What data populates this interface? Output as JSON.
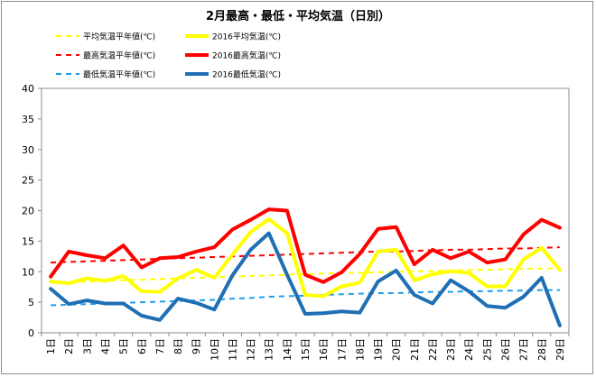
{
  "chart_data": {
    "type": "line",
    "title": "2月最高・最低・平均気温（日別）",
    "xlabel": "",
    "ylabel": "",
    "ylim": [
      0,
      40
    ],
    "yticks": [
      0,
      5,
      10,
      15,
      20,
      25,
      30,
      35,
      40
    ],
    "grid": false,
    "legend_position": "top-left",
    "categories": [
      "1日",
      "2日",
      "3日",
      "4日",
      "5日",
      "6日",
      "7日",
      "8日",
      "9日",
      "10日",
      "11日",
      "12日",
      "13日",
      "14日",
      "15日",
      "16日",
      "17日",
      "18日",
      "19日",
      "20日",
      "21日",
      "22日",
      "23日",
      "24日",
      "25日",
      "26日",
      "27日",
      "28日",
      "29日"
    ],
    "series": [
      {
        "name": "平均気温平年値(℃)",
        "color": "#ffff00",
        "style": "dashed",
        "values": [
          8.2,
          8.3,
          8.4,
          8.5,
          8.6,
          8.7,
          8.8,
          8.9,
          9.0,
          9.1,
          9.2,
          9.3,
          9.4,
          9.5,
          9.6,
          9.7,
          9.8,
          9.8,
          9.9,
          10.0,
          10.1,
          10.1,
          10.2,
          10.3,
          10.3,
          10.4,
          10.5,
          10.5,
          10.6
        ]
      },
      {
        "name": "2016平均気温(℃)",
        "color": "#ffff00",
        "style": "solid",
        "values": [
          8.4,
          8.1,
          8.9,
          8.5,
          9.3,
          6.8,
          6.7,
          8.9,
          10.3,
          9.0,
          12.8,
          16.5,
          18.6,
          16.3,
          6.2,
          6.0,
          7.6,
          8.2,
          13.3,
          13.6,
          8.6,
          9.6,
          10.1,
          9.8,
          7.6,
          7.6,
          12.0,
          13.9,
          10.3
        ]
      },
      {
        "name": "最高気温平年値(℃)",
        "color": "#ff0000",
        "style": "dashed",
        "values": [
          11.5,
          11.6,
          11.7,
          11.8,
          11.9,
          12.0,
          12.1,
          12.2,
          12.3,
          12.4,
          12.5,
          12.6,
          12.7,
          12.8,
          12.9,
          13.0,
          13.1,
          13.2,
          13.3,
          13.3,
          13.4,
          13.5,
          13.6,
          13.6,
          13.7,
          13.8,
          13.8,
          13.9,
          14.0
        ]
      },
      {
        "name": "2016最高気温(℃)",
        "color": "#ff0000",
        "style": "solid",
        "values": [
          9.2,
          13.3,
          12.7,
          12.2,
          14.3,
          10.7,
          12.2,
          12.4,
          13.3,
          14.0,
          16.9,
          18.5,
          20.2,
          20.0,
          9.5,
          8.3,
          9.9,
          12.9,
          17.0,
          17.3,
          11.2,
          13.6,
          12.2,
          13.3,
          11.5,
          12.0,
          16.1,
          18.5,
          17.2
        ]
      },
      {
        "name": "最低気温平年値(℃)",
        "color": "#1f9ee8",
        "style": "dashed",
        "values": [
          4.5,
          4.6,
          4.7,
          4.8,
          4.9,
          5.0,
          5.1,
          5.2,
          5.3,
          5.4,
          5.6,
          5.7,
          5.9,
          6.0,
          6.1,
          6.2,
          6.3,
          6.4,
          6.5,
          6.5,
          6.6,
          6.7,
          6.7,
          6.8,
          6.8,
          6.9,
          6.9,
          7.0,
          7.0
        ]
      },
      {
        "name": "2016最低気温(℃)",
        "color": "#1f6fb4",
        "style": "solid",
        "values": [
          7.2,
          4.7,
          5.3,
          4.8,
          4.8,
          2.8,
          2.1,
          5.6,
          4.9,
          3.8,
          9.4,
          13.6,
          16.3,
          9.5,
          3.1,
          3.2,
          3.5,
          3.3,
          8.4,
          10.2,
          6.2,
          4.8,
          8.6,
          6.8,
          4.4,
          4.1,
          5.9,
          9.0,
          1.2
        ]
      }
    ]
  }
}
